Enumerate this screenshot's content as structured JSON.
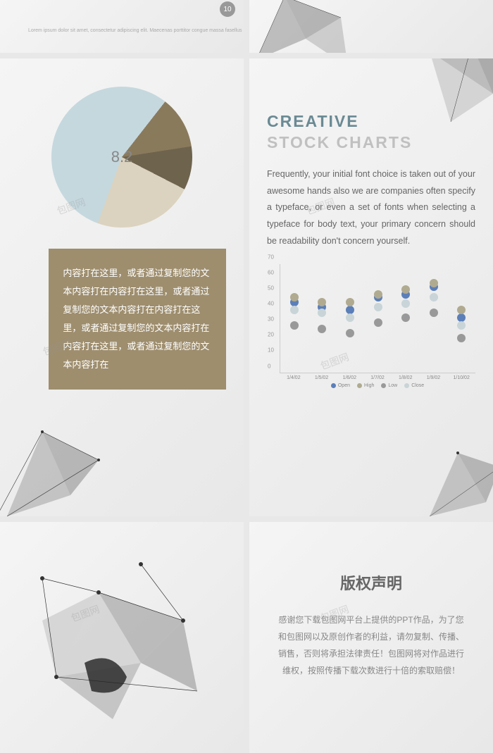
{
  "top": {
    "page_num": "10",
    "lorem": "Lorem ipsum dolor sit amet, consectetur adipiscing elit. Maecenas porttitor congue massa fasellus"
  },
  "pie": {
    "center_label": "8.2",
    "slices": [
      {
        "value": 55,
        "color": "#c5d8de"
      },
      {
        "value": 12,
        "color": "#8a7a5c"
      },
      {
        "value": 10,
        "color": "#6e634d"
      },
      {
        "value": 23,
        "color": "#dbd3bf"
      }
    ],
    "background": "#f0f0f0"
  },
  "textbox": {
    "bg_color": "#9e8e6e",
    "text_color": "#ffffff",
    "content": "内容打在这里，或者通过复制您的文本内容打在内容打在这里，或者通过复制您的文本内容打在内容打在这里，或者通过复制您的文本内容打在内容打在这里，或者通过复制您的文本内容打在"
  },
  "right": {
    "title1": "CREATIVE",
    "title2": "STOCK CHARTS",
    "title1_color": "#6a8a94",
    "title2_color": "#c0c0c0",
    "body": "Frequently, your initial font choice is taken out of your awesome hands also we are companies often specify a typeface, or even a set of fonts when selecting a typeface for body text, your primary concern should be readability don't concern yourself."
  },
  "scatter": {
    "ylim": [
      0,
      70
    ],
    "ytick_step": 10,
    "yticks": [
      "0",
      "10",
      "20",
      "30",
      "40",
      "50",
      "60",
      "70"
    ],
    "xlabels": [
      "1/4/02",
      "1/5/02",
      "1/6/02",
      "1/7/02",
      "1/8/02",
      "1/9/02",
      "1/10/02"
    ],
    "legend": [
      {
        "label": "Open",
        "color": "#5b7fb8"
      },
      {
        "label": "High",
        "color": "#b0aa90"
      },
      {
        "label": "Low",
        "color": "#999999"
      },
      {
        "label": "Close",
        "color": "#c8d4d8"
      }
    ],
    "series": {
      "Open": [
        45,
        42,
        40,
        48,
        50,
        55,
        35
      ],
      "High": [
        48,
        45,
        45,
        50,
        53,
        57,
        40
      ],
      "Low": [
        30,
        28,
        25,
        32,
        35,
        38,
        22
      ],
      "Close": [
        40,
        38,
        35,
        42,
        44,
        48,
        30
      ]
    },
    "colors": {
      "Open": "#5b7fb8",
      "High": "#b0aa90",
      "Low": "#999999",
      "Close": "#c8d4d8"
    },
    "dot_size": 12
  },
  "copyright": {
    "title": "版权声明",
    "body": "感谢您下载包图网平台上提供的PPT作品，为了您和包图网以及原创作者的利益，请勿复制、传播、销售，否则将承担法律责任！包图网将对作品进行维权，按照传播下载次数进行十倍的索取赔偿！"
  },
  "watermark": "包图网"
}
